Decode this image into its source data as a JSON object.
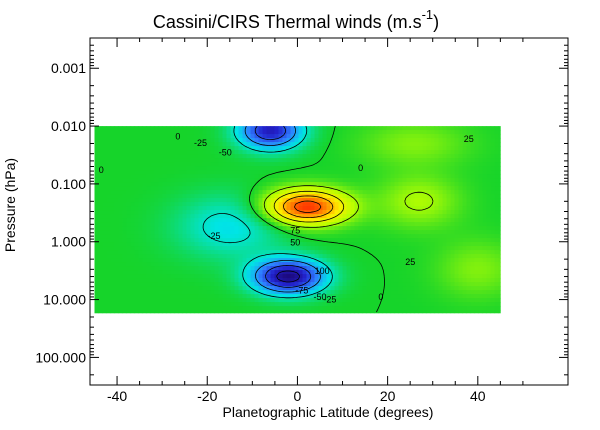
{
  "chart_data": {
    "type": "heatmap",
    "title_main": "Cassini/CIRS Thermal winds (m.s",
    "title_sup": "-1",
    "title_close": ")",
    "xlabel": "Planetographic Latitude (degrees)",
    "ylabel": "Pressure (hPa)",
    "xlim": [
      -46,
      60
    ],
    "xticks": [
      -40,
      -20,
      0,
      20,
      40
    ],
    "xtick_labels": [
      "-40",
      "-20",
      "0",
      "20",
      "40"
    ],
    "yscale": "log",
    "ylim": [
      0.0003,
      300
    ],
    "yticks": [
      0.001,
      0.01,
      0.1,
      1,
      10,
      100
    ],
    "ytick_labels": [
      "0.001",
      "0.010",
      "0.100",
      "1.000",
      "10.000",
      "100.000"
    ],
    "data_extent": {
      "lat": [
        -45,
        45
      ],
      "pressure": [
        0.01,
        17
      ]
    },
    "colorscale": [
      "#1a0060",
      "#2222cc",
      "#2f7fff",
      "#00e5e5",
      "#16d42a",
      "#b7ff00",
      "#ffee00",
      "#ff8800",
      "#ff1a00"
    ],
    "features": [
      {
        "lat": -6,
        "pressure": 0.012,
        "value": -95
      },
      {
        "lat": 2,
        "pressure": 0.25,
        "value": 115
      },
      {
        "lat": -2,
        "pressure": 4.0,
        "value": -110
      },
      {
        "lat": -15,
        "pressure": 0.55,
        "value": -32
      },
      {
        "lat": 27,
        "pressure": 0.2,
        "value": 28
      },
      {
        "lat": 40,
        "pressure": 3.0,
        "value": 20
      },
      {
        "lat": 26,
        "pressure": 0.02,
        "value": 20
      }
    ],
    "contour_labels": [
      {
        "text": "0",
        "lat": -26.5,
        "pressure": 0.017
      },
      {
        "text": "0",
        "lat": -43.5,
        "pressure": 0.065
      },
      {
        "text": "-25",
        "lat": -21.5,
        "pressure": 0.022
      },
      {
        "text": "-50",
        "lat": -16,
        "pressure": 0.032
      },
      {
        "text": "0",
        "lat": 14,
        "pressure": 0.06
      },
      {
        "text": "25",
        "lat": 38,
        "pressure": 0.019
      },
      {
        "text": "75",
        "lat": -0.5,
        "pressure": 0.72
      },
      {
        "text": "50",
        "lat": -0.5,
        "pressure": 1.15
      },
      {
        "text": "-25",
        "lat": -18.5,
        "pressure": 0.9
      },
      {
        "text": "100",
        "lat": 5.5,
        "pressure": 3.6
      },
      {
        "text": "-75",
        "lat": 1,
        "pressure": 7.8
      },
      {
        "text": "-50",
        "lat": 5,
        "pressure": 10.2
      },
      {
        "text": "-25",
        "lat": 7.2,
        "pressure": 11.3
      },
      {
        "text": "0",
        "lat": 18.5,
        "pressure": 10.2
      },
      {
        "text": "25",
        "lat": 25,
        "pressure": 2.5
      }
    ]
  }
}
